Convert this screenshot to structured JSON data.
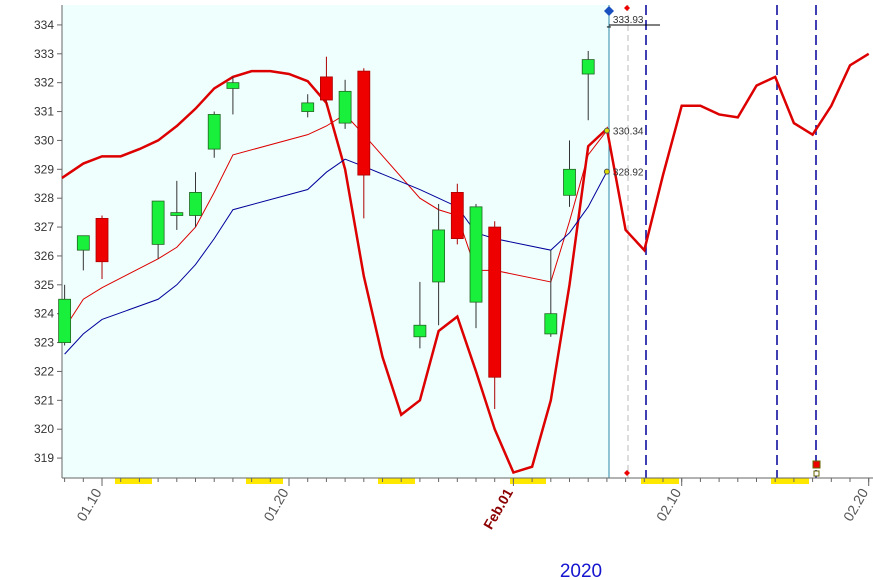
{
  "chart_data": {
    "type": "candlestick",
    "xlim": [
      7.86,
      51.23
    ],
    "xticks": [
      {
        "value": 10,
        "label": "01.10"
      },
      {
        "value": 20,
        "label": "01.20"
      },
      {
        "value": 32,
        "label": "Feb.01"
      },
      {
        "value": 41,
        "label": "02.10"
      },
      {
        "value": 51,
        "label": "02.20"
      }
    ],
    "highlight_tick_color": "#8b0000",
    "year": "2020",
    "ylim": [
      318.31,
      334.69
    ],
    "yticks": [
      319,
      320,
      321,
      322,
      323,
      324,
      325,
      326,
      327,
      328,
      329,
      330,
      331,
      332,
      333,
      334
    ],
    "up_color": "#19f03c",
    "down_color": "#ee0000",
    "x": [
      8,
      9,
      10,
      13,
      14,
      15,
      16,
      17,
      21,
      22,
      23,
      24,
      27,
      28,
      29,
      30,
      31,
      34,
      35,
      36
    ],
    "open": [
      323.0,
      326.2,
      327.3,
      326.4,
      327.4,
      327.4,
      329.7,
      331.8,
      331.0,
      332.2,
      330.6,
      332.4,
      323.2,
      325.1,
      328.2,
      324.4,
      327.0,
      323.3,
      328.1,
      332.3
    ],
    "high": [
      325.0,
      326.7,
      327.4,
      327.9,
      328.6,
      328.9,
      331.0,
      332.2,
      331.6,
      332.9,
      332.1,
      332.5,
      325.1,
      327.8,
      328.5,
      327.8,
      327.2,
      326.2,
      330.0,
      333.1
    ],
    "low": [
      322.9,
      325.5,
      325.2,
      325.9,
      326.9,
      327.0,
      329.4,
      330.9,
      330.8,
      331.2,
      330.4,
      327.3,
      322.8,
      323.6,
      326.4,
      323.5,
      320.7,
      323.2,
      327.7,
      330.7
    ],
    "close": [
      324.5,
      326.7,
      325.8,
      327.9,
      327.5,
      328.2,
      330.9,
      332.0,
      331.3,
      331.4,
      331.7,
      328.8,
      323.6,
      326.9,
      326.6,
      327.7,
      321.8,
      324.0,
      329.0,
      332.8
    ],
    "lines": [
      {
        "color": "#dd0000",
        "width": 2.5,
        "x": [
          7.86,
          9,
          10,
          11,
          12,
          13,
          14,
          15,
          16,
          17,
          18,
          19,
          20,
          21,
          22,
          23,
          24,
          25,
          26,
          27,
          28,
          29,
          30,
          31,
          32,
          33,
          34,
          35,
          36,
          37,
          38,
          39,
          40,
          41,
          42,
          43,
          44,
          45,
          46,
          47,
          48,
          49,
          50,
          51
        ],
        "values": [
          328.7,
          329.2,
          329.45,
          329.45,
          329.7,
          330.0,
          330.5,
          331.1,
          331.8,
          332.2,
          332.4,
          332.4,
          332.3,
          332.05,
          331.3,
          329.0,
          325.3,
          322.5,
          320.5,
          321.0,
          323.4,
          323.9,
          322.0,
          320.0,
          318.5,
          318.7,
          321.0,
          325.0,
          329.8,
          330.4,
          326.9,
          326.2,
          328.8,
          331.2,
          331.2,
          330.9,
          330.8,
          331.9,
          332.2,
          330.6,
          330.2,
          331.2,
          332.6,
          333.0
        ]
      },
      {
        "color": "#dd0000",
        "width": 1,
        "x": [
          8,
          9,
          10,
          13,
          14,
          15,
          16,
          17,
          21,
          22,
          23,
          24,
          27,
          28,
          29,
          30,
          31,
          34,
          35,
          36,
          37
        ],
        "values": [
          323.5,
          324.5,
          324.9,
          325.9,
          326.3,
          327.0,
          328.2,
          329.5,
          330.2,
          330.5,
          330.9,
          330.2,
          328.0,
          327.6,
          327.4,
          325.5,
          325.5,
          325.1,
          327.2,
          329.5,
          330.34
        ]
      },
      {
        "color": "#000099",
        "width": 1,
        "x": [
          8,
          9,
          10,
          13,
          14,
          15,
          16,
          17,
          21,
          22,
          23,
          24,
          27,
          28,
          29,
          30,
          31,
          34,
          35,
          36,
          37
        ],
        "values": [
          322.6,
          323.3,
          323.8,
          324.5,
          325.0,
          325.7,
          326.6,
          327.6,
          328.3,
          328.9,
          329.35,
          329.1,
          328.3,
          328.0,
          327.7,
          326.8,
          326.6,
          326.2,
          326.8,
          327.7,
          328.92
        ]
      }
    ],
    "annotations": [
      {
        "x": 37,
        "value": 333.93
      },
      {
        "x": 37,
        "value": 330.34
      },
      {
        "x": 37,
        "value": 328.92
      }
    ]
  }
}
